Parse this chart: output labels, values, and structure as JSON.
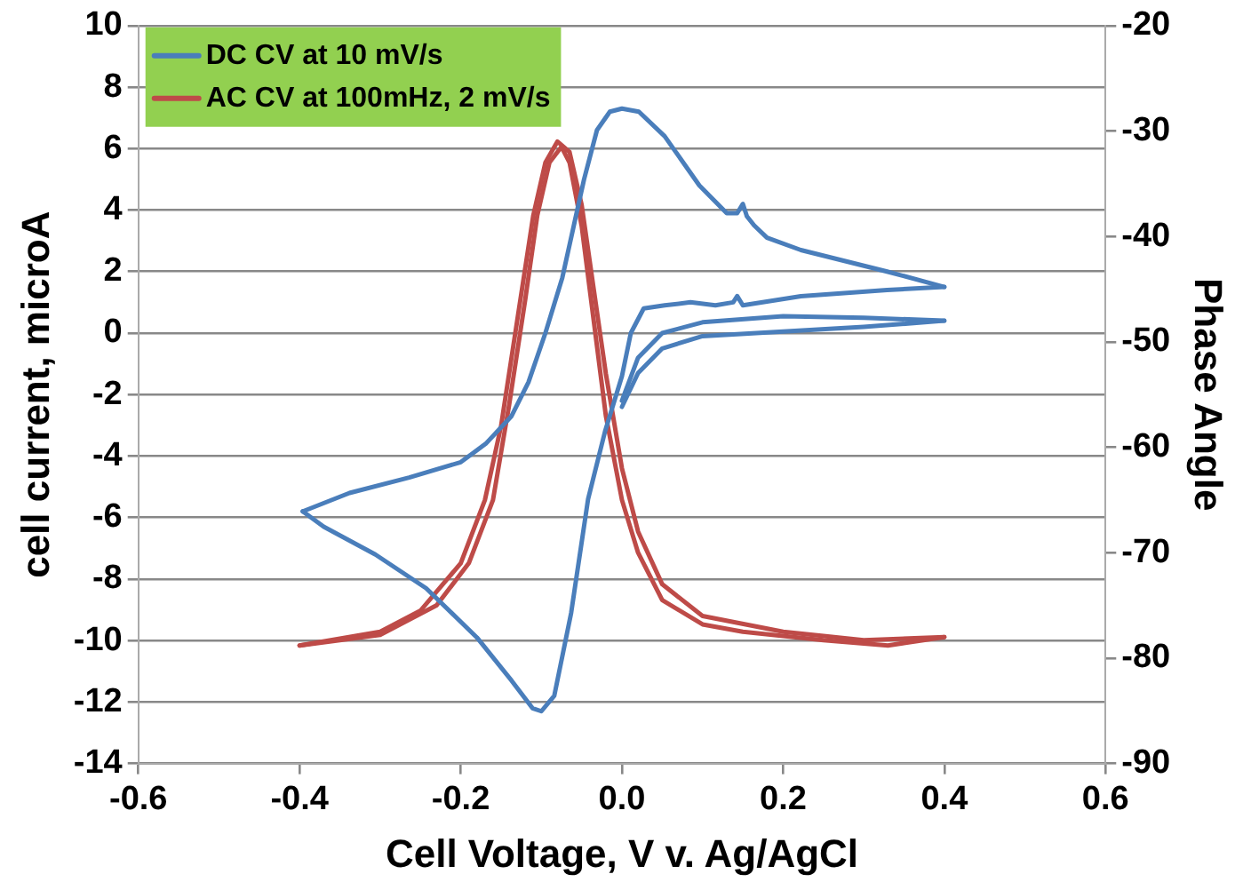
{
  "chart_data": {
    "type": "line",
    "xlabel": "Cell Voltage, V v. Ag/AgCl",
    "ylabel": "cell current, microA",
    "y2label": "Phase Angle",
    "xlim": [
      -0.6,
      0.6
    ],
    "xticks": [
      -0.6,
      -0.4,
      -0.2,
      {
        "value": 0,
        "label": "0.0"
      },
      0.2,
      0.4,
      0.6
    ],
    "ylim": [
      -14,
      10
    ],
    "yticks": [
      -14,
      -12,
      -10,
      -8,
      -6,
      -4,
      -2,
      0,
      2,
      4,
      6,
      8,
      10
    ],
    "y2lim": [
      -90,
      -20
    ],
    "y2ticks": [
      -90,
      -80,
      -70,
      -60,
      -50,
      -40,
      -30,
      -20
    ],
    "grid": "y",
    "legend": "top left",
    "marker": "none",
    "line_style": "solid",
    "series": [
      {
        "name": "DC CV at 10 mV/s",
        "color": "#4a7ebb",
        "x": [
          0.4,
          0.329,
          0.222,
          0.18,
          0.164,
          0.155,
          0.15,
          0.143,
          0.13,
          0.096,
          0.053,
          0.021,
          0,
          -0.015,
          -0.031,
          -0.047,
          -0.058,
          -0.074,
          -0.095,
          -0.116,
          -0.137,
          -0.169,
          -0.2,
          -0.264,
          -0.338,
          -0.396
        ],
        "values": [
          1.5,
          2.0,
          2.7,
          3.1,
          3.5,
          3.8,
          4.2,
          3.9,
          3.9,
          4.8,
          6.4,
          7.2,
          7.3,
          7.2,
          6.6,
          5.0,
          3.7,
          1.8,
          0,
          -1.6,
          -2.7,
          -3.6,
          -4.2,
          -4.7,
          -5.2,
          -5.8
        ]
      },
      {
        "color": "#4a7ebb",
        "x": [
          -0.396,
          -0.37,
          -0.306,
          -0.243,
          -0.18,
          -0.137,
          -0.111,
          -0.1,
          -0.084,
          -0.063,
          -0.042,
          -0.021,
          0,
          0.011,
          0.027,
          0.053,
          0.085,
          0.116,
          0.138,
          0.143,
          0.15,
          0.222,
          0.329,
          0.4
        ],
        "values": [
          -5.8,
          -6.3,
          -7.2,
          -8.3,
          -9.9,
          -11.3,
          -12.2,
          -12.3,
          -11.8,
          -9.1,
          -5.4,
          -3.2,
          -1.4,
          0,
          0.8,
          0.9,
          1.0,
          0.9,
          1.0,
          1.2,
          0.9,
          1.2,
          1.4,
          1.5
        ]
      },
      {
        "color": "#4a7ebb",
        "x": [
          0,
          0.02,
          0.05,
          0.1,
          0.2,
          0.3,
          0.4
        ],
        "values": [
          -2.2,
          -0.8,
          0,
          0.35,
          0.55,
          0.5,
          0.4
        ]
      },
      {
        "color": "#4a7ebb",
        "x": [
          0.4,
          0.3,
          0.2,
          0.1,
          0.05,
          0.02,
          0
        ],
        "values": [
          0.4,
          0.2,
          0.05,
          -0.1,
          -0.5,
          -1.3,
          -2.4
        ]
      },
      {
        "name": "AC CV at 100mHz, 2 mV/s",
        "color": "#be4b48",
        "axis": "y2",
        "x": [
          -0.4,
          -0.3,
          -0.25,
          -0.2,
          -0.17,
          -0.15,
          -0.13,
          -0.11,
          -0.095,
          -0.08,
          -0.065,
          -0.05,
          -0.035,
          -0.02,
          0,
          0.02,
          0.05,
          0.1,
          0.2,
          0.3,
          0.4
        ],
        "values": [
          -78.8,
          -77.5,
          -75.5,
          -71,
          -65,
          -58,
          -48,
          -38,
          -33,
          -31,
          -32,
          -37,
          -45,
          -53,
          -62,
          -68,
          -73,
          -76,
          -77.5,
          -78.3,
          -78
        ]
      },
      {
        "color": "#be4b48",
        "axis": "y2",
        "x": [
          0.4,
          0.33,
          0.25,
          0.15,
          0.1,
          0.05,
          0.02,
          0,
          -0.02,
          -0.035,
          -0.05,
          -0.065,
          -0.075,
          -0.09,
          -0.105,
          -0.12,
          -0.14,
          -0.16,
          -0.19,
          -0.23,
          -0.3,
          -0.4
        ],
        "values": [
          -78,
          -78.8,
          -78.3,
          -77.5,
          -76.8,
          -74.5,
          -70,
          -65,
          -57,
          -48,
          -39,
          -33,
          -31.5,
          -33,
          -38,
          -46,
          -56,
          -65,
          -71,
          -75,
          -77.8,
          -78.8
        ]
      }
    ]
  }
}
